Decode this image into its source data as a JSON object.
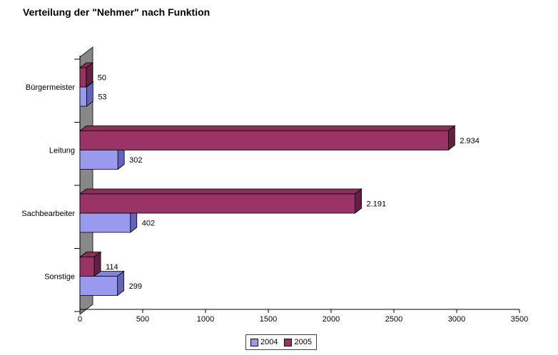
{
  "title": "Verteilung der \"Nehmer\" nach Funktion",
  "chart_data": {
    "type": "bar",
    "orientation": "horizontal",
    "style": "3d",
    "title": "Verteilung der \"Nehmer\" nach Funktion",
    "categories": [
      "Bürgermeister",
      "Leitung",
      "Sachbearbeiter",
      "Sonstige"
    ],
    "series": [
      {
        "name": "2004",
        "values": [
          53,
          302,
          402,
          299
        ],
        "labels": [
          "53",
          "302",
          "402",
          "299"
        ],
        "color": "#9999F0",
        "color_top": "#8282DC",
        "color_side": "#6363BC"
      },
      {
        "name": "2005",
        "values": [
          50,
          2934,
          2191,
          114
        ],
        "labels": [
          "50",
          "2.934",
          "2.191",
          "114"
        ],
        "color": "#993366",
        "color_top": "#8A2E5B",
        "color_side": "#632043"
      }
    ],
    "xlabel": "",
    "ylabel": "",
    "xlim": [
      0,
      3500
    ],
    "x_ticks": [
      0,
      500,
      1000,
      1500,
      2000,
      2500,
      3000,
      3500
    ],
    "grid": false,
    "legend_position": "bottom",
    "wall_color": "#888888",
    "outline_color": "#000000"
  },
  "legend": {
    "items": [
      {
        "label": "2004",
        "color": "#9999F0"
      },
      {
        "label": "2005",
        "color": "#993366"
      }
    ]
  }
}
